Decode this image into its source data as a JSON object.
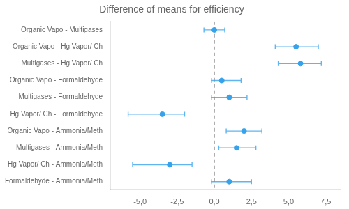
{
  "chart_data": {
    "type": "errorbar",
    "title": "Difference of means for efficiency",
    "categories": [
      "Formaldehyde - Ammonia/Meth",
      "Hg Vapor/ Ch - Ammonia/Meth",
      "Multigases - Ammonia/Meth",
      "Organic Vapo - Ammonia/Meth",
      "Hg Vapor/ Ch - Formaldehyde",
      "Multigases - Formaldehyde",
      "Organic Vapo - Formaldehyde",
      "Multigases - Hg Vapor/ Ch",
      "Organic Vapo - Hg Vapor/ Ch",
      "Organic Vapo - Multigases"
    ],
    "values": [
      1.0,
      -3.0,
      1.5,
      2.0,
      -3.5,
      1.0,
      0.5,
      5.8,
      5.5,
      0.0
    ],
    "ci_low": [
      -0.2,
      -5.5,
      0.3,
      0.8,
      -5.8,
      -0.2,
      -0.2,
      4.3,
      4.1,
      -0.7
    ],
    "ci_high": [
      2.5,
      -1.5,
      2.8,
      3.2,
      -2.0,
      2.2,
      1.8,
      7.2,
      7.0,
      0.7
    ],
    "orientation": "horizontal",
    "xlim": [
      -7.0,
      8.5
    ],
    "xticks": [
      {
        "value": -5.0,
        "label": "-5,0"
      },
      {
        "value": -2.5,
        "label": "-2,5"
      },
      {
        "value": 0.0,
        "label": "0,0"
      },
      {
        "value": 2.5,
        "label": "2,5"
      },
      {
        "value": 5.0,
        "label": "5,0"
      },
      {
        "value": 7.5,
        "label": "7,5"
      }
    ],
    "reference_line": {
      "x": 0,
      "line_style": "dashed"
    },
    "grid": false
  }
}
